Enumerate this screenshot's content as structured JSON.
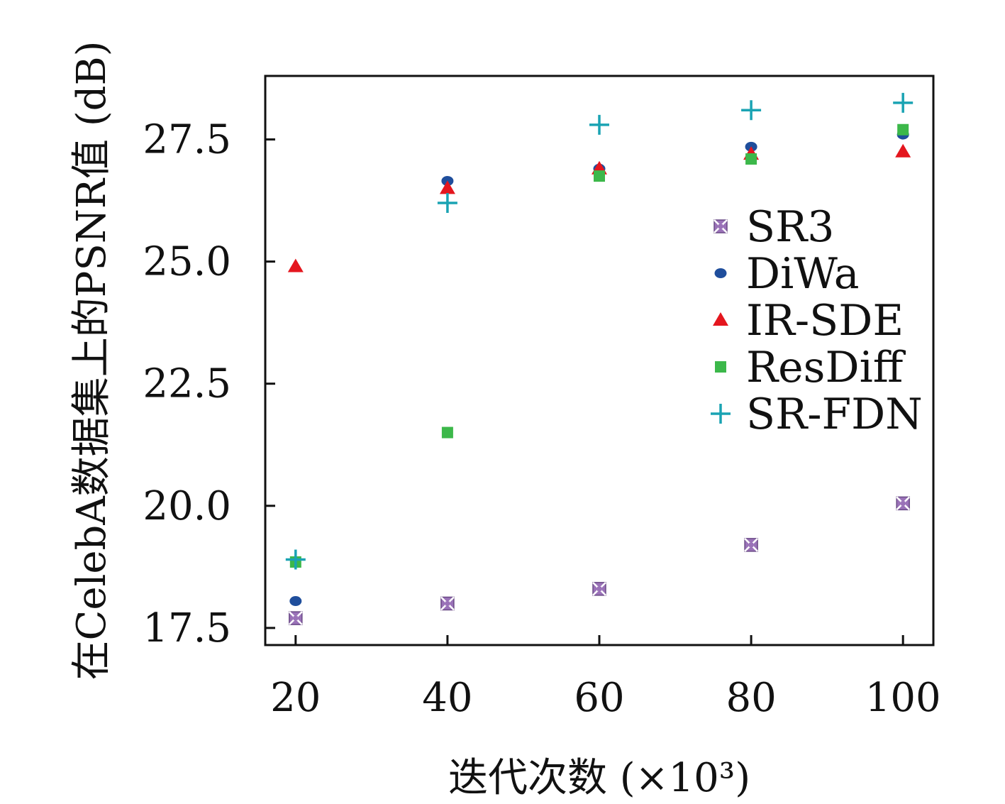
{
  "chart_data": {
    "type": "scatter",
    "xlabel": "迭代次数 (×10³)",
    "ylabel": "在CelebA数据集上的PSNR值 (dB)",
    "x": [
      20,
      40,
      60,
      80,
      100
    ],
    "xticks": [
      "20",
      "40",
      "60",
      "80",
      "100"
    ],
    "yticks": [
      "17.5",
      "20.0",
      "22.5",
      "25.0",
      "27.5"
    ],
    "xlim": [
      16,
      104
    ],
    "ylim": [
      17.15,
      28.8
    ],
    "grid": false,
    "legend_position": "right",
    "series": [
      {
        "name": "SR3",
        "marker": "square-hatched",
        "color": "#9a72b8",
        "values": [
          17.7,
          18.0,
          18.3,
          19.2,
          20.05
        ]
      },
      {
        "name": "DiWa",
        "marker": "circle",
        "color": "#1f4e9c",
        "values": [
          18.05,
          26.65,
          26.9,
          27.35,
          27.6
        ]
      },
      {
        "name": "IR-SDE",
        "marker": "triangle",
        "color": "#e4161e",
        "values": [
          24.9,
          26.5,
          26.9,
          27.2,
          27.25
        ]
      },
      {
        "name": "ResDiff",
        "marker": "square",
        "color": "#3cb84a",
        "values": [
          18.85,
          21.5,
          26.75,
          27.1,
          27.7
        ]
      },
      {
        "name": "SR-FDN",
        "marker": "plus",
        "color": "#1aa3b3",
        "values": [
          18.9,
          26.2,
          27.8,
          28.1,
          28.25
        ]
      }
    ]
  }
}
